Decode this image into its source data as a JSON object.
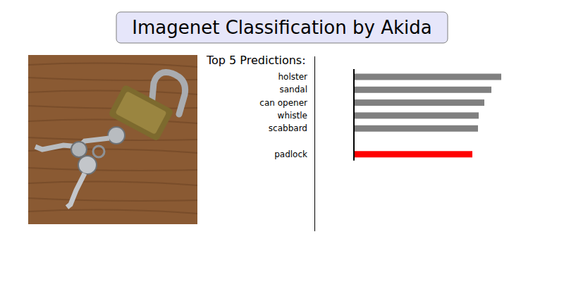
{
  "chart_data": {
    "type": "bar",
    "orientation": "horizontal",
    "title": "Imagenet Classification by Akida",
    "subtitle": "Top 5 Predictions:",
    "categories": [
      "holster",
      "sandal",
      "can opener",
      "whistle",
      "scabbard",
      null,
      "padlock"
    ],
    "values": [
      209,
      195,
      185,
      177,
      176,
      null,
      168
    ],
    "colors": [
      "#808080",
      "#808080",
      "#808080",
      "#808080",
      "#808080",
      null,
      "#ff0000"
    ],
    "xlim": [
      0,
      250
    ],
    "tick_labels": false
  }
}
